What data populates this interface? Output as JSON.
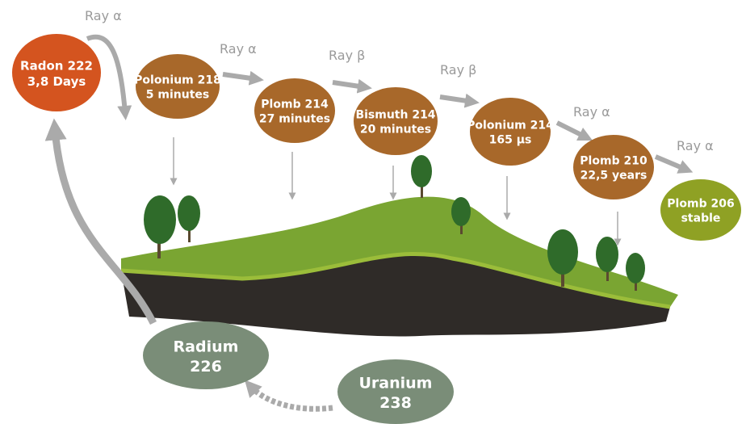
{
  "title": null,
  "nodes": [
    {
      "name": "Radon 222",
      "detail": "3,8 Days"
    },
    {
      "name": "Polonium 218",
      "detail": "5 minutes"
    },
    {
      "name": "Plomb 214",
      "detail": "27 minutes"
    },
    {
      "name": "Bismuth 214",
      "detail": "20 minutes"
    },
    {
      "name": "Polonium 214",
      "detail": "165 µs"
    },
    {
      "name": "Plomb 210",
      "detail": "22,5 years"
    },
    {
      "name": "Plomb 206",
      "detail": "stable"
    },
    {
      "name": "Radium",
      "detail": "226"
    },
    {
      "name": "Uranium",
      "detail": "238"
    }
  ],
  "rays": [
    "Ray α",
    "Ray α",
    "Ray β",
    "Ray β",
    "Ray α",
    "Ray α"
  ]
}
